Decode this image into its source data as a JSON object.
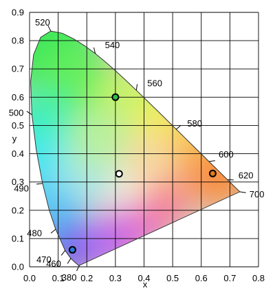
{
  "chart_data": {
    "type": "scatter",
    "title": "",
    "xlabel": "x",
    "ylabel": "y",
    "xlim": [
      0.0,
      0.8
    ],
    "ylim": [
      0.0,
      0.9
    ],
    "grid": true,
    "x_ticks": [
      "0.0",
      "0.1",
      "0.2",
      "0.3",
      "0.4",
      "0.5",
      "0.6",
      "0.7",
      "0.8"
    ],
    "y_ticks": [
      "0.0",
      "0.1",
      "0.2",
      "0.3",
      "0.4",
      "0.5",
      "0.6",
      "0.7",
      "0.8",
      "0.9"
    ],
    "spectral_locus": [
      [
        0.1741,
        0.005
      ],
      [
        0.1738,
        0.0049
      ],
      [
        0.1733,
        0.0048
      ],
      [
        0.1726,
        0.0048
      ],
      [
        0.1714,
        0.0051
      ],
      [
        0.1689,
        0.0069
      ],
      [
        0.1644,
        0.0109
      ],
      [
        0.1566,
        0.0177
      ],
      [
        0.144,
        0.0297
      ],
      [
        0.1241,
        0.0578
      ],
      [
        0.0913,
        0.1327
      ],
      [
        0.0687,
        0.2007
      ],
      [
        0.0454,
        0.295
      ],
      [
        0.0235,
        0.4127
      ],
      [
        0.0082,
        0.5384
      ],
      [
        0.0039,
        0.6548
      ],
      [
        0.0139,
        0.7502
      ],
      [
        0.0389,
        0.812
      ],
      [
        0.0743,
        0.8338
      ],
      [
        0.1142,
        0.8262
      ],
      [
        0.1547,
        0.8059
      ],
      [
        0.1929,
        0.7816
      ],
      [
        0.2296,
        0.7543
      ],
      [
        0.2658,
        0.7243
      ],
      [
        0.3016,
        0.6923
      ],
      [
        0.3373,
        0.6589
      ],
      [
        0.3731,
        0.6245
      ],
      [
        0.4087,
        0.5896
      ],
      [
        0.4441,
        0.5547
      ],
      [
        0.4788,
        0.5202
      ],
      [
        0.5125,
        0.4866
      ],
      [
        0.5448,
        0.4544
      ],
      [
        0.5752,
        0.4242
      ],
      [
        0.6029,
        0.3965
      ],
      [
        0.627,
        0.3725
      ],
      [
        0.6482,
        0.3514
      ],
      [
        0.6658,
        0.334
      ],
      [
        0.6801,
        0.3197
      ],
      [
        0.6915,
        0.3083
      ],
      [
        0.7006,
        0.2993
      ],
      [
        0.714,
        0.2859
      ],
      [
        0.7219,
        0.278
      ],
      [
        0.726,
        0.274
      ],
      [
        0.7347,
        0.2653
      ]
    ],
    "wavelength_labels": [
      {
        "label": "380",
        "x": 0.1741,
        "y": 0.005
      },
      {
        "label": "460",
        "x": 0.144,
        "y": 0.0297
      },
      {
        "label": "470",
        "x": 0.1241,
        "y": 0.0578
      },
      {
        "label": "480",
        "x": 0.0913,
        "y": 0.1327
      },
      {
        "label": "490",
        "x": 0.0454,
        "y": 0.295
      },
      {
        "label": "500",
        "x": 0.0082,
        "y": 0.5384
      },
      {
        "label": "520",
        "x": 0.0743,
        "y": 0.8338
      },
      {
        "label": "540",
        "x": 0.2296,
        "y": 0.7543
      },
      {
        "label": "560",
        "x": 0.3731,
        "y": 0.6245
      },
      {
        "label": "580",
        "x": 0.5125,
        "y": 0.4866
      },
      {
        "label": "600",
        "x": 0.627,
        "y": 0.3725
      },
      {
        "label": "620",
        "x": 0.6915,
        "y": 0.3083
      },
      {
        "label": "700",
        "x": 0.7347,
        "y": 0.2653
      }
    ],
    "points": [
      {
        "x": 0.64,
        "y": 0.33,
        "color": "#e07a1a"
      },
      {
        "x": 0.3,
        "y": 0.6,
        "color": "#2fbf4a"
      },
      {
        "x": 0.15,
        "y": 0.06,
        "color": "#2a78d8"
      },
      {
        "x": 0.3127,
        "y": 0.329,
        "color": "#ffffff"
      }
    ]
  }
}
